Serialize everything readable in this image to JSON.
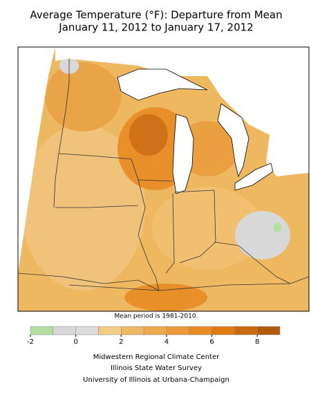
{
  "title_lines": [
    "Average Temperature (°F): Departure from Mean",
    "January 11, 2012 to January 17, 2012"
  ],
  "note": "Mean period is 1981-2010.",
  "colorbar": {
    "bins": [
      -2,
      -1,
      0,
      1,
      2,
      3,
      4,
      5,
      6,
      7,
      8,
      9
    ],
    "colors": [
      "#b3e0a0",
      "#d8d8d8",
      "#dcdcdc",
      "#f2cc84",
      "#ecb862",
      "#eaa94c",
      "#e99a38",
      "#ea8a22",
      "#e07a10",
      "#c86a10",
      "#b05a0e"
    ],
    "ticks": [
      -2,
      0,
      2,
      4,
      6,
      8
    ]
  },
  "footer": [
    "Midwestern Regional Climate Center",
    "Illinois State Water Survey",
    "University of Illinois at Urbana-Champaign"
  ]
}
